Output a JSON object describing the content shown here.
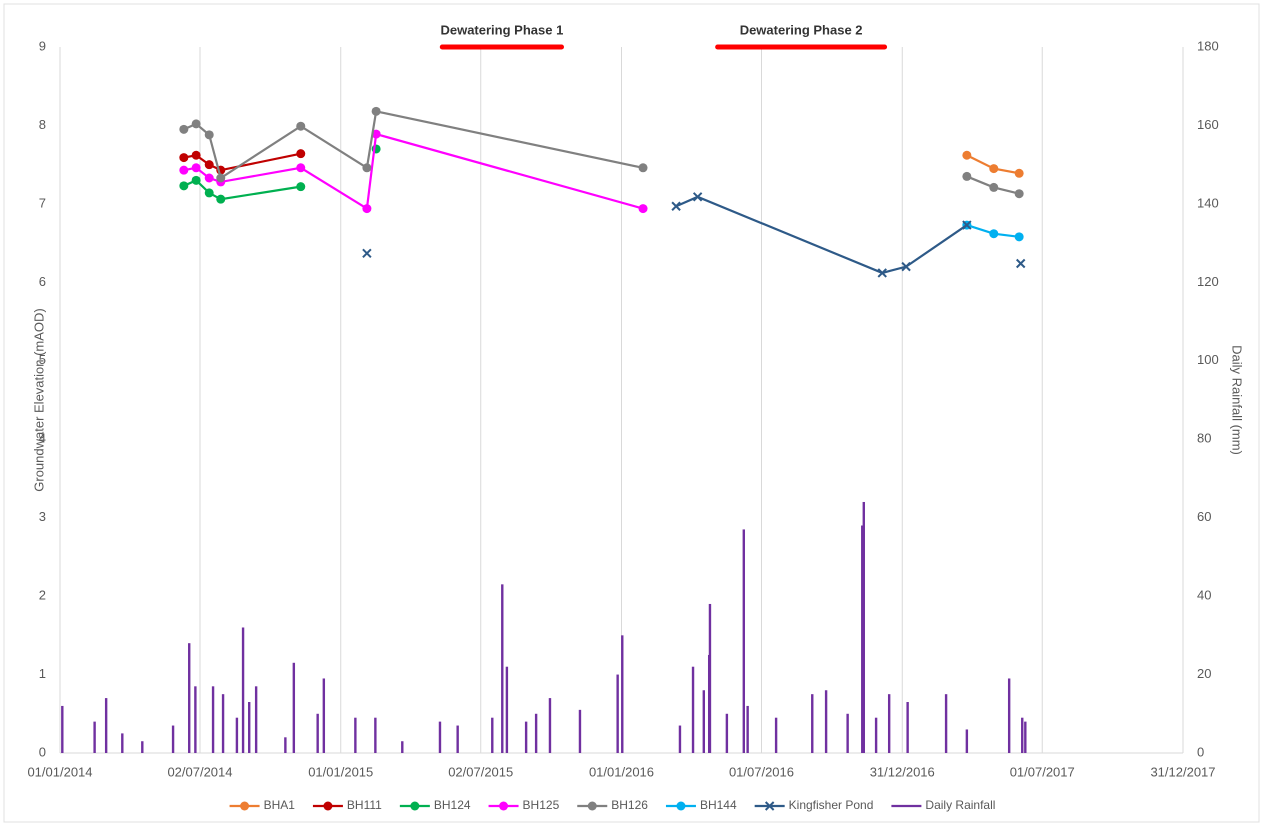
{
  "chart_data": {
    "type": "line",
    "y_label": "Groundwater Elevation (mAOD)",
    "y2_label": "Daily Rainfall (mm)",
    "xlim": [
      "01/01/2014",
      "31/12/2017"
    ],
    "xticks": [
      "01/01/2014",
      "02/07/2014",
      "01/01/2015",
      "02/07/2015",
      "01/01/2016",
      "01/07/2016",
      "31/12/2016",
      "01/07/2017",
      "31/12/2017"
    ],
    "ylim": [
      0,
      9
    ],
    "yticks": [
      0,
      1,
      2,
      3,
      4,
      5,
      6,
      7,
      8,
      9
    ],
    "y2lim": [
      0,
      180
    ],
    "y2ticks": [
      0,
      20,
      40,
      60,
      80,
      100,
      120,
      140,
      160,
      180
    ],
    "grid": "x",
    "legend": "bottom",
    "annotations": [
      {
        "text": "Dewatering Phase 1",
        "start": "13/05/2015",
        "end": "15/10/2015",
        "color": "#ff0000"
      },
      {
        "text": "Dewatering Phase 2",
        "start": "05/05/2016",
        "end": "08/12/2016",
        "color": "#ff0000"
      }
    ],
    "series": [
      {
        "name": "BHA1",
        "color": "#ed7d31",
        "marker": "circle",
        "x": [
          "25/03/2017",
          "29/04/2017",
          "01/06/2017"
        ],
        "values": [
          7.62,
          7.45,
          7.39
        ]
      },
      {
        "name": "BH111",
        "color": "#c00000",
        "marker": "circle",
        "x": [
          "11/06/2014",
          "27/06/2014",
          "14/07/2014",
          "29/07/2014",
          "10/11/2014"
        ],
        "values": [
          7.59,
          7.62,
          7.5,
          7.43,
          7.64
        ]
      },
      {
        "name": "BH124",
        "color": "#00b050",
        "marker": "circle",
        "x": [
          "11/06/2014",
          "27/06/2014",
          "14/07/2014",
          "29/07/2014",
          "10/11/2014",
          null,
          "16/02/2015"
        ],
        "values": [
          7.23,
          7.3,
          7.14,
          7.06,
          7.22,
          null,
          7.7
        ]
      },
      {
        "name": "BH125",
        "color": "#ff00ff",
        "marker": "circle",
        "x": [
          "11/06/2014",
          "27/06/2014",
          "14/07/2014",
          "29/07/2014",
          "10/11/2014",
          "04/02/2015",
          "16/02/2015",
          "29/01/2016"
        ],
        "values": [
          7.43,
          7.46,
          7.33,
          7.28,
          7.46,
          6.94,
          7.89,
          6.94
        ]
      },
      {
        "name": "BH126",
        "color": "#808080",
        "marker": "circle",
        "x": [
          "11/06/2014",
          "27/06/2014",
          "14/07/2014",
          "29/07/2014",
          "10/11/2014",
          "04/02/2015",
          "16/02/2015",
          "29/01/2016",
          null,
          "25/03/2017",
          "29/04/2017",
          "01/06/2017"
        ],
        "values": [
          7.95,
          8.02,
          7.88,
          7.33,
          7.99,
          7.46,
          8.18,
          7.46,
          null,
          7.35,
          7.21,
          7.13
        ]
      },
      {
        "name": "BH144",
        "color": "#00b0f0",
        "marker": "circle",
        "x": [
          "25/03/2017",
          "29/04/2017",
          "01/06/2017"
        ],
        "values": [
          6.73,
          6.62,
          6.58
        ]
      },
      {
        "name": "Kingfisher Pond",
        "color": "#2e5a88",
        "marker": "x",
        "x": [
          "04/02/2015",
          null,
          "12/03/2016",
          "09/04/2016",
          "05/12/2016",
          "05/01/2017",
          "25/03/2017",
          null,
          "03/06/2017"
        ],
        "values": [
          6.37,
          null,
          6.97,
          7.09,
          6.12,
          6.2,
          6.73,
          null,
          6.24
        ]
      },
      {
        "name": "Daily Rainfall",
        "color": "#7030a0",
        "marker": "none",
        "type": "bar",
        "axis": "y2",
        "x": [
          "04/01/2014",
          "15/02/2014",
          "02/03/2014",
          "23/03/2014",
          "18/04/2014",
          "28/05/2014",
          "18/06/2014",
          "26/06/2014",
          "19/07/2014",
          "01/08/2014",
          "19/08/2014",
          "27/08/2014",
          "04/09/2014",
          "13/09/2014",
          "21/10/2014",
          "01/11/2014",
          "02/12/2014",
          "10/12/2014",
          "20/01/2015",
          "15/02/2015",
          "22/03/2015",
          "10/05/2015",
          "02/06/2015",
          "17/07/2015",
          "30/07/2015",
          "05/08/2015",
          "30/08/2015",
          "12/09/2015",
          "30/09/2015",
          "08/11/2015",
          "27/12/2015",
          "02/01/2016",
          "17/03/2016",
          "03/04/2016",
          "17/04/2016",
          "24/04/2016",
          "25/04/2016",
          "17/05/2016",
          "08/06/2016",
          "13/06/2016",
          "20/07/2016",
          "05/09/2016",
          "23/09/2016",
          "21/10/2016",
          "09/11/2016",
          "11/11/2016",
          "27/11/2016",
          "14/12/2016",
          "07/01/2017",
          "26/02/2017",
          "25/03/2017",
          "19/05/2017",
          "05/06/2017",
          "09/06/2017"
        ],
        "values": [
          12,
          8,
          14,
          5,
          3,
          7,
          28,
          17,
          17,
          15,
          9,
          32,
          13,
          17,
          4,
          23,
          10,
          19,
          9,
          9,
          3,
          8,
          7,
          9,
          43,
          22,
          8,
          10,
          14,
          11,
          20,
          30,
          7,
          22,
          16,
          25,
          38,
          10,
          57,
          12,
          9,
          15,
          16,
          10,
          58,
          64,
          9,
          15,
          13,
          15,
          6,
          19,
          9,
          8
        ]
      }
    ]
  }
}
